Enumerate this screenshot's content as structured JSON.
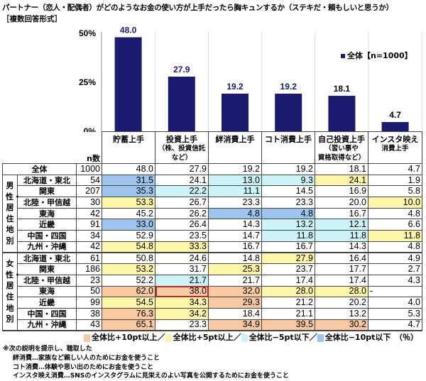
{
  "title": "パートナー（恋人・配偶者）がどのようなお金の使い方が上手だったら胸キュンするか（ステキだ・頼もしいと思うか）",
  "subtitle": "［複数回答形式］",
  "colors": {
    "bar": "#1a1a6e",
    "plus10": "#f8c9a2",
    "plus5": "#fdf5a8",
    "minus5": "#ccf3f8",
    "minus10": "#9cc4ee",
    "outline": "#c0282a"
  },
  "chart_data": {
    "type": "bar",
    "categories": [
      "貯蓄上手",
      "投資上手（株、投資信託など）",
      "絆消費上手",
      "コト消費上手",
      "自己投資上手（習い事や資格取得など）",
      "インスタ映え消費上手"
    ],
    "series": [
      {
        "name": "全体【n=1000】",
        "values": [
          48.0,
          27.9,
          19.2,
          19.2,
          18.1,
          4.7
        ]
      }
    ],
    "value_labels": [
      "48.0",
      "27.9",
      "19.2",
      "19.2",
      "18.1",
      "4.7"
    ],
    "yticks": [
      "0%",
      "25%",
      "50%"
    ],
    "ylim": [
      0,
      50
    ],
    "legend": "top-right",
    "grid": false
  },
  "legend_top": "全体【n=1000】",
  "header": {
    "n_label": "n数",
    "cols": [
      [
        "貯蓄上手"
      ],
      [
        "投資上手",
        "（株、投資信託",
        "など）"
      ],
      [
        "絆消費上手"
      ],
      [
        "コト消費上手"
      ],
      [
        "自己投資上手",
        "（習い事や",
        "資格取得など）"
      ],
      [
        "インスタ映え",
        "消費上手"
      ]
    ]
  },
  "total": {
    "label": "全体",
    "n": "1000",
    "values": [
      "48.0",
      "27.9",
      "19.2",
      "19.2",
      "18.1",
      "4.7"
    ]
  },
  "groups": [
    {
      "label": "男性・居住地別",
      "rows": [
        {
          "region": "北海道・東北",
          "n": "54",
          "values": [
            "31.5",
            "24.1",
            "13.0",
            "9.3",
            "24.1",
            "1.9"
          ],
          "marks": [
            "b",
            "",
            "c",
            "c",
            "y",
            ""
          ]
        },
        {
          "region": "関東",
          "n": "207",
          "values": [
            "35.3",
            "22.2",
            "11.1",
            "14.5",
            "16.9",
            "5.8"
          ],
          "marks": [
            "b",
            "c",
            "c",
            "",
            "",
            ""
          ]
        },
        {
          "region": "北陸・甲信越",
          "n": "30",
          "values": [
            "53.3",
            "26.7",
            "23.3",
            "23.3",
            "20.0",
            "10.0"
          ],
          "marks": [
            "y",
            "",
            "",
            "",
            "",
            "y"
          ]
        },
        {
          "region": "東海",
          "n": "42",
          "values": [
            "45.2",
            "26.2",
            "4.8",
            "4.8",
            "16.7",
            "4.8"
          ],
          "marks": [
            "",
            "",
            "b",
            "b",
            "",
            ""
          ]
        },
        {
          "region": "近畿",
          "n": "91",
          "values": [
            "33.0",
            "26.4",
            "14.3",
            "13.2",
            "12.1",
            "6.6"
          ],
          "marks": [
            "b",
            "",
            "",
            "c",
            "c",
            ""
          ]
        },
        {
          "region": "中国・四国",
          "n": "34",
          "values": [
            "52.9",
            "23.5",
            "14.7",
            "11.8",
            "11.8",
            "11.8"
          ],
          "marks": [
            "",
            "",
            "",
            "c",
            "c",
            "y"
          ]
        },
        {
          "region": "九州・沖縄",
          "n": "42",
          "values": [
            "54.8",
            "33.3",
            "16.7",
            "16.7",
            "14.3",
            "4.8"
          ],
          "marks": [
            "y",
            "y",
            "",
            "",
            "",
            ""
          ]
        }
      ]
    },
    {
      "label": "女性・居住地別",
      "rows": [
        {
          "region": "北海道・東北",
          "n": "61",
          "values": [
            "50.8",
            "24.6",
            "14.8",
            "27.9",
            "16.4",
            "4.9"
          ],
          "marks": [
            "",
            "",
            "",
            "y",
            "",
            ""
          ]
        },
        {
          "region": "関東",
          "n": "186",
          "values": [
            "53.2",
            "31.7",
            "25.3",
            "23.7",
            "17.7",
            "2.7"
          ],
          "marks": [
            "y",
            "",
            "y",
            "",
            "",
            ""
          ]
        },
        {
          "region": "北陸・甲信越",
          "n": "23",
          "values": [
            "52.2",
            "21.7",
            "21.7",
            "17.4",
            "17.4",
            "4.3"
          ],
          "marks": [
            "",
            "c",
            "",
            "",
            "",
            ""
          ]
        },
        {
          "region": "東海",
          "n": "50",
          "values": [
            "62.0",
            "38.0",
            "32.0",
            "28.0",
            "28.0",
            "-"
          ],
          "marks": [
            "o",
            "o outl",
            "o",
            "y",
            "y",
            "dash"
          ]
        },
        {
          "region": "近畿",
          "n": "99",
          "values": [
            "54.5",
            "34.3",
            "29.3",
            "21.2",
            "20.2",
            "4.0"
          ],
          "marks": [
            "y",
            "y",
            "o",
            "",
            "",
            ""
          ]
        },
        {
          "region": "中国・四国",
          "n": "38",
          "values": [
            "76.3",
            "34.2",
            "18.4",
            "21.1",
            "13.2",
            "5.3"
          ],
          "marks": [
            "o",
            "y",
            "",
            "",
            "",
            ""
          ]
        },
        {
          "region": "九州・沖縄",
          "n": "43",
          "values": [
            "65.1",
            "23.3",
            "34.9",
            "39.5",
            "30.2",
            "4.7"
          ],
          "marks": [
            "o",
            "",
            "o",
            "o",
            "o",
            ""
          ]
        }
      ]
    }
  ],
  "legend": [
    {
      "label": "全体比+10pt以上／",
      "key": "plus10"
    },
    {
      "label": "全体比+5pt以上／",
      "key": "plus5"
    },
    {
      "label": "全体比−5pt以下／",
      "key": "minus5"
    },
    {
      "label": "全体比−10pt以下",
      "key": "minus10"
    }
  ],
  "unit": "（％）",
  "notes": [
    "※次の説明を提示し、聴取した",
    "絆消費…家族など親しい人のためにお金を使うこと",
    "コト消費…体験や思い出のためにお金を使うこと",
    "インスタ映え消費…SNSのインスタグラムに見栄えのよい写真を公開するためにお金を使うこと"
  ]
}
